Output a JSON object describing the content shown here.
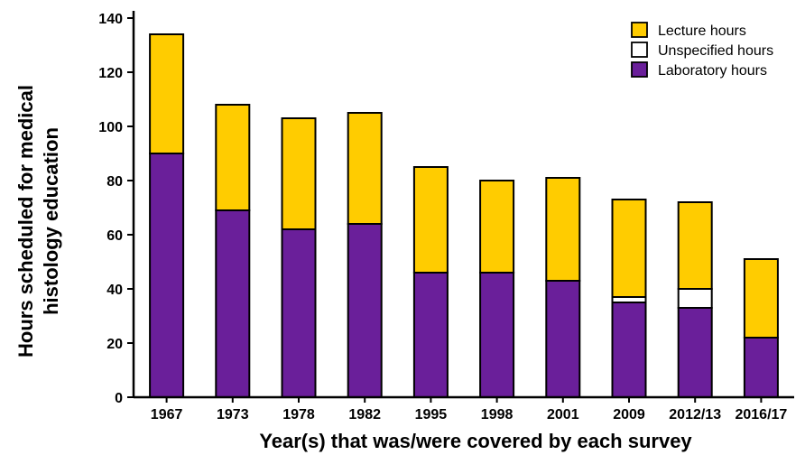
{
  "chart_data": {
    "type": "bar",
    "stacked": true,
    "categories": [
      "1967",
      "1973",
      "1978",
      "1982",
      "1995",
      "1998",
      "2001",
      "2009",
      "2012/13",
      "2016/17"
    ],
    "series": [
      {
        "name": "Laboratory hours",
        "color": "#6a1f9a",
        "values": [
          90,
          69,
          62,
          64,
          46,
          46,
          43,
          35,
          33,
          22
        ]
      },
      {
        "name": "Unspecified hours",
        "color": "#ffffff",
        "values": [
          0,
          0,
          0,
          0,
          0,
          0,
          0,
          2,
          7,
          0
        ]
      },
      {
        "name": "Lecture hours",
        "color": "#ffcc00",
        "values": [
          44,
          39,
          41,
          41,
          39,
          34,
          38,
          36,
          32,
          29
        ]
      }
    ],
    "legend_order": [
      "Lecture hours",
      "Unspecified hours",
      "Laboratory hours"
    ],
    "legend_position": "top-right",
    "ylabel_lines": [
      "Hours scheduled for medical",
      "histology education"
    ],
    "xlabel": "Year(s) that was/were covered by each survey",
    "ylim": [
      0,
      140
    ],
    "yticks": [
      "0",
      "20",
      "40",
      "60",
      "80",
      "100",
      "120",
      "140"
    ],
    "grid": false
  }
}
